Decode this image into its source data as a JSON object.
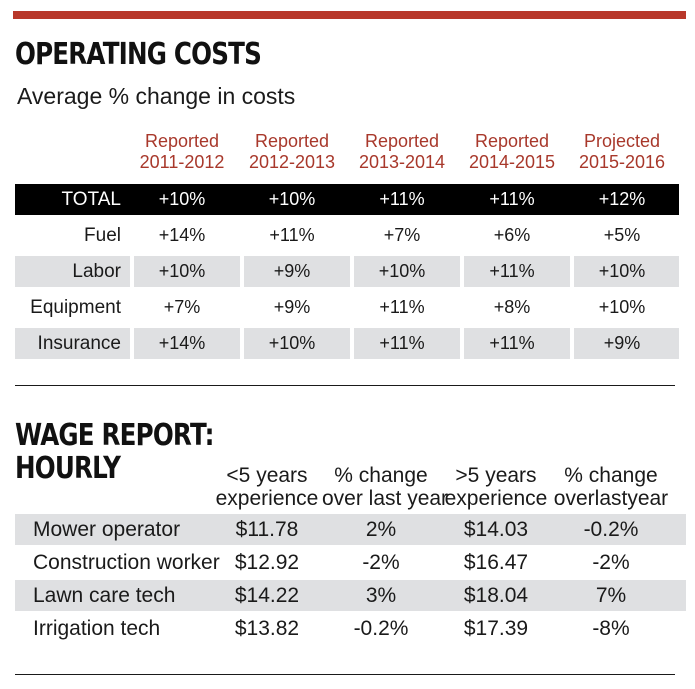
{
  "costs": {
    "title": "OPERATING COSTS",
    "subtitle": "Average % change in costs",
    "columns": [
      {
        "line1": "Reported",
        "line2": "2011-2012"
      },
      {
        "line1": "Reported",
        "line2": "2012-2013"
      },
      {
        "line1": "Reported",
        "line2": "2013-2014"
      },
      {
        "line1": "Reported",
        "line2": "2014-2015"
      },
      {
        "line1": "Projected",
        "line2": "2015-2016"
      }
    ],
    "rows": [
      {
        "label": "TOTAL",
        "values": [
          "+10%",
          "+10%",
          "+11%",
          "+11%",
          "+12%"
        ]
      },
      {
        "label": "Fuel",
        "values": [
          "+14%",
          "+11%",
          "+7%",
          "+6%",
          "+5%"
        ]
      },
      {
        "label": "Labor",
        "values": [
          "+10%",
          "+9%",
          "+10%",
          "+11%",
          "+10%"
        ]
      },
      {
        "label": "Equipment",
        "values": [
          "+7%",
          "+9%",
          "+11%",
          "+8%",
          "+10%"
        ]
      },
      {
        "label": "Insurance",
        "values": [
          "+14%",
          "+10%",
          "+11%",
          "+11%",
          "+9%"
        ]
      }
    ]
  },
  "wages": {
    "title_line1": "WAGE REPORT:",
    "title_line2": "HOURLY",
    "columns": [
      {
        "line1": "<5 years",
        "line2": "experience"
      },
      {
        "line1": "% change",
        "line2": "over last year"
      },
      {
        "line1": ">5 years",
        "line2": "experience"
      },
      {
        "line1": "% change",
        "line2": "overlastyear"
      }
    ],
    "rows": [
      {
        "label": "Mower operator",
        "values": [
          "$11.78",
          "2%",
          "$14.03",
          "-0.2%"
        ]
      },
      {
        "label": "Construction worker",
        "values": [
          "$12.92",
          "-2%",
          "$16.47",
          "-2%"
        ]
      },
      {
        "label": "Lawn care tech",
        "values": [
          "$14.22",
          "3%",
          "$18.04",
          "7%"
        ]
      },
      {
        "label": "Irrigation tech",
        "values": [
          "$13.82",
          "-0.2%",
          "$17.39",
          "-8%"
        ]
      }
    ]
  },
  "colors": {
    "accent": "#b8372a",
    "header_text": "#a8382b",
    "shade": "#dfe0e2",
    "total_bg": "#000000"
  }
}
